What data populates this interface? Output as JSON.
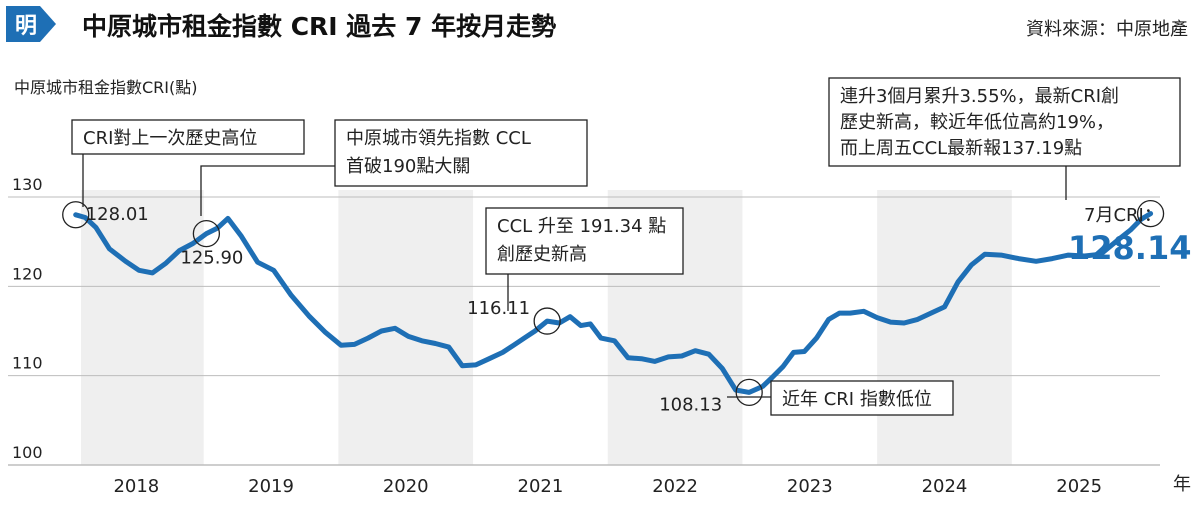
{
  "header": {
    "logo_text": "明",
    "title": "中原城市租金指數 CRI 過去 7 年按月走勢",
    "source": "資料來源：中原地產"
  },
  "chart_data": {
    "type": "line",
    "title": "中原城市租金指數 CRI 過去 7 年按月走勢",
    "ylabel": "中原城市租金指數CRI(點)",
    "xlabel": "年",
    "ylim": [
      100,
      130
    ],
    "yticks": [
      100,
      110,
      120,
      130
    ],
    "xlim": [
      2017.5,
      2025.6
    ],
    "year_labels": [
      "2018",
      "2019",
      "2020",
      "2021",
      "2022",
      "2023",
      "2024",
      "2025"
    ],
    "grid": false,
    "line_color": "#1e6fb5",
    "band_color": "#efefef",
    "series": [
      {
        "name": "CRI",
        "x": [
          2017.55,
          2017.62,
          2017.7,
          2017.8,
          2017.92,
          2018.02,
          2018.12,
          2018.22,
          2018.32,
          2018.42,
          2018.52,
          2018.6,
          2018.68,
          2018.78,
          2018.9,
          2019.02,
          2019.15,
          2019.28,
          2019.4,
          2019.52,
          2019.62,
          2019.72,
          2019.82,
          2019.92,
          2020.02,
          2020.12,
          2020.22,
          2020.32,
          2020.42,
          2020.52,
          2020.62,
          2020.72,
          2020.8,
          2020.88,
          2020.96,
          2021.05,
          2021.14,
          2021.22,
          2021.3,
          2021.37,
          2021.45,
          2021.55,
          2021.65,
          2021.75,
          2021.85,
          2021.95,
          2022.05,
          2022.15,
          2022.25,
          2022.35,
          2022.45,
          2022.55,
          2022.65,
          2022.72,
          2022.8,
          2022.88,
          2022.96,
          2023.05,
          2023.14,
          2023.22,
          2023.3,
          2023.4,
          2023.5,
          2023.6,
          2023.7,
          2023.8,
          2023.9,
          2024.0,
          2024.1,
          2024.2,
          2024.3,
          2024.42,
          2024.55,
          2024.68,
          2024.8,
          2024.92,
          2025.04,
          2025.16,
          2025.28,
          2025.38,
          2025.46,
          2025.53
        ],
        "values": [
          128.01,
          127.7,
          126.6,
          124.2,
          122.8,
          121.8,
          121.5,
          122.6,
          124.0,
          124.8,
          125.9,
          126.5,
          127.6,
          125.6,
          122.7,
          121.8,
          119.0,
          116.7,
          114.9,
          113.4,
          113.5,
          114.2,
          115.0,
          115.3,
          114.4,
          113.9,
          113.6,
          113.2,
          111.1,
          111.2,
          111.9,
          112.6,
          113.4,
          114.2,
          115.0,
          116.11,
          115.9,
          116.6,
          115.6,
          115.8,
          114.2,
          113.9,
          112.0,
          111.9,
          111.6,
          112.1,
          112.2,
          112.8,
          112.4,
          110.8,
          108.4,
          108.13,
          108.8,
          109.8,
          111.0,
          112.6,
          112.7,
          114.2,
          116.3,
          117.0,
          117.0,
          117.2,
          116.5,
          116.0,
          115.9,
          116.3,
          117.0,
          117.7,
          120.5,
          122.4,
          123.6,
          123.5,
          123.1,
          122.8,
          123.1,
          123.5,
          123.4,
          123.6,
          125.1,
          126.3,
          127.5,
          128.14
        ]
      }
    ],
    "point_labels": [
      {
        "x": 2017.55,
        "y": 128.01,
        "text": "128.01"
      },
      {
        "x": 2018.52,
        "y": 125.9,
        "text": "125.90"
      },
      {
        "x": 2021.05,
        "y": 116.11,
        "text": "116.11"
      },
      {
        "x": 2022.55,
        "y": 108.13,
        "text": "108.13"
      }
    ],
    "annotations": [
      {
        "x": 2017.55,
        "y": 128.01,
        "lines": [
          "CRI對上一次歷史高位"
        ]
      },
      {
        "x": 2018.52,
        "y": 125.9,
        "lines": [
          "中原城市領先指數 CCL",
          "首破190點大關"
        ]
      },
      {
        "x": 2021.05,
        "y": 116.11,
        "lines": [
          "CCL 升至 191.34 點",
          "創歷史新高"
        ]
      },
      {
        "x": 2022.55,
        "y": 108.13,
        "lines": [
          "近年 CRI 指數低位"
        ]
      },
      {
        "x": 2025.53,
        "y": 128.14,
        "lines": [
          "連升3個月累升3.55%，最新CRI創",
          "歷史新高，較近年低位高約19%，",
          "而上周五CCL最新報137.19點"
        ]
      }
    ],
    "latest": {
      "label": "7月CRI：",
      "value": "128.14"
    }
  }
}
